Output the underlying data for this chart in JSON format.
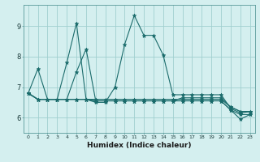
{
  "title": "",
  "xlabel": "Humidex (Indice chaleur)",
  "ylabel": "",
  "bg_color": "#d4efef",
  "grid_color": "#a0cfcf",
  "line_color": "#1a6b6b",
  "xlim": [
    -0.5,
    23.5
  ],
  "ylim": [
    5.5,
    9.7
  ],
  "yticks": [
    6,
    7,
    8,
    9
  ],
  "xticks": [
    0,
    1,
    2,
    3,
    4,
    5,
    6,
    7,
    8,
    9,
    10,
    11,
    12,
    13,
    14,
    15,
    16,
    17,
    18,
    19,
    20,
    21,
    22,
    23
  ],
  "series": [
    [
      6.8,
      7.6,
      6.6,
      6.6,
      7.8,
      9.1,
      6.6,
      6.5,
      6.5,
      7.0,
      8.4,
      9.35,
      8.7,
      8.7,
      8.05,
      6.75,
      6.75,
      6.75,
      6.75,
      6.75,
      6.75,
      6.3,
      6.15,
      6.2
    ],
    [
      6.8,
      6.6,
      6.6,
      6.6,
      6.6,
      7.5,
      8.25,
      6.55,
      6.55,
      6.55,
      6.55,
      6.55,
      6.55,
      6.55,
      6.55,
      6.55,
      6.65,
      6.65,
      6.65,
      6.65,
      6.65,
      6.35,
      6.2,
      6.2
    ],
    [
      6.8,
      6.6,
      6.6,
      6.6,
      6.6,
      6.6,
      6.6,
      6.55,
      6.55,
      6.55,
      6.55,
      6.55,
      6.55,
      6.55,
      6.55,
      6.55,
      6.55,
      6.55,
      6.55,
      6.55,
      6.55,
      6.25,
      6.1,
      6.1
    ],
    [
      6.8,
      6.6,
      6.6,
      6.6,
      6.6,
      6.6,
      6.6,
      6.55,
      6.55,
      6.55,
      6.55,
      6.55,
      6.55,
      6.55,
      6.55,
      6.55,
      6.55,
      6.55,
      6.55,
      6.55,
      6.55,
      6.25,
      5.95,
      6.1
    ],
    [
      6.8,
      6.6,
      6.6,
      6.6,
      6.6,
      6.6,
      6.6,
      6.6,
      6.6,
      6.6,
      6.6,
      6.6,
      6.6,
      6.6,
      6.6,
      6.6,
      6.6,
      6.6,
      6.6,
      6.6,
      6.6,
      6.35,
      6.2,
      6.2
    ]
  ]
}
